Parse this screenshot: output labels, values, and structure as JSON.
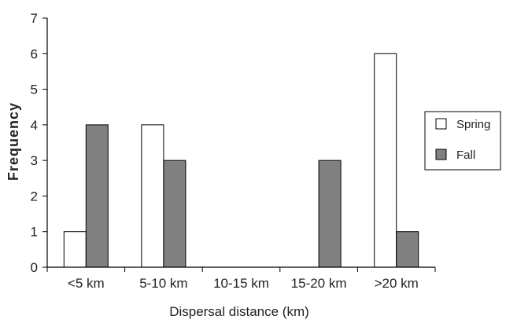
{
  "chart_data": {
    "type": "bar",
    "title": "",
    "xlabel": "Dispersal distance (km)",
    "ylabel": "Frequency",
    "ylim": [
      0,
      7
    ],
    "yticks": [
      0,
      1,
      2,
      3,
      4,
      5,
      6,
      7
    ],
    "categories": [
      "<5 km",
      "5-10 km",
      "10-15 km",
      "15-20 km",
      ">20 km"
    ],
    "series": [
      {
        "name": "Spring",
        "values": [
          1,
          4,
          0,
          0,
          6
        ],
        "color": "#ffffff"
      },
      {
        "name": "Fall",
        "values": [
          4,
          3,
          0,
          3,
          1
        ],
        "color": "#808080"
      }
    ],
    "grid": false,
    "legend": "right"
  }
}
